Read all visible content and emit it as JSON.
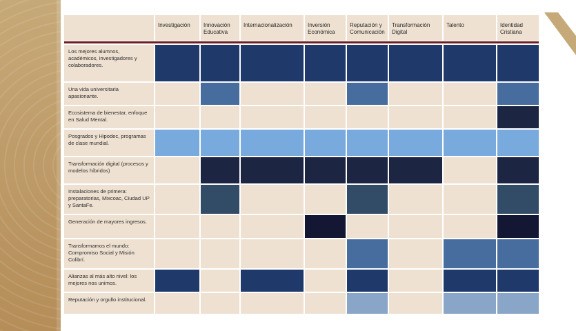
{
  "table": {
    "columns": [
      "Investigación",
      "Innovación Educativa",
      "Internacionalización",
      "Inversión Económica",
      "Reputación y Comunicación",
      "Transformación Digital",
      "Talento",
      "Identidad Cristiana"
    ],
    "rows": [
      {
        "label": "Los mejores alumnos, académicos, investigadores  y colaboradores.",
        "cells": [
          "navy",
          "navy",
          "navy",
          "navy",
          "navy",
          "navy",
          "navy",
          "navy"
        ]
      },
      {
        "label": "Una vida universitaria apasionante.",
        "cells": [
          "",
          "mid",
          "",
          "",
          "mid",
          "",
          "",
          "mid"
        ]
      },
      {
        "label": "Ecosistema de bienestar, enfoque en Salud Mental.",
        "cells": [
          "",
          "",
          "",
          "",
          "",
          "",
          "",
          "dark"
        ]
      },
      {
        "label": "Posgrados y Hipodec, programas de clase mundial.",
        "cells": [
          "light",
          "light",
          "light",
          "light",
          "light",
          "light",
          "light",
          "light"
        ]
      },
      {
        "label": "Transformación digital (procesos y modelos híbridos)",
        "cells": [
          "",
          "dark",
          "dark",
          "dark",
          "dark",
          "dark",
          "",
          "dark"
        ]
      },
      {
        "label": "Instalaciones de primera: preparatorias, Mixcoac, Ciudad UP y SantaFe.",
        "cells": [
          "",
          "slate",
          "",
          "",
          "slate",
          "",
          "",
          "slate"
        ]
      },
      {
        "label": "Generación de mayores ingresos.",
        "cells": [
          "",
          "",
          "",
          "ink",
          "",
          "",
          "",
          "ink"
        ]
      },
      {
        "label": "Transformamos el mundo: Compromiso Social y Misión Colibrí.",
        "cells": [
          "",
          "",
          "",
          "",
          "mid",
          "",
          "mid",
          "mid"
        ]
      },
      {
        "label": "Alianzas al más alto nivel: los mejores nos unimos.",
        "cells": [
          "navy",
          "",
          "navy",
          "",
          "navy",
          "",
          "navy",
          "navy"
        ]
      },
      {
        "label": "Reputación y orgullo institucional.",
        "cells": [
          "",
          "",
          "",
          "",
          "pale",
          "",
          "pale",
          "pale"
        ]
      }
    ]
  },
  "colors": {
    "navy": "#1f3a6a",
    "mid": "#466d9d",
    "dark": "#1c2541",
    "light": "#78aade",
    "slate": "#324c67",
    "ink": "#141733",
    "pale": "#89a6c8",
    "empty": "#eee1d1",
    "rule": "#6b1f24",
    "gold": "#c6a978"
  }
}
